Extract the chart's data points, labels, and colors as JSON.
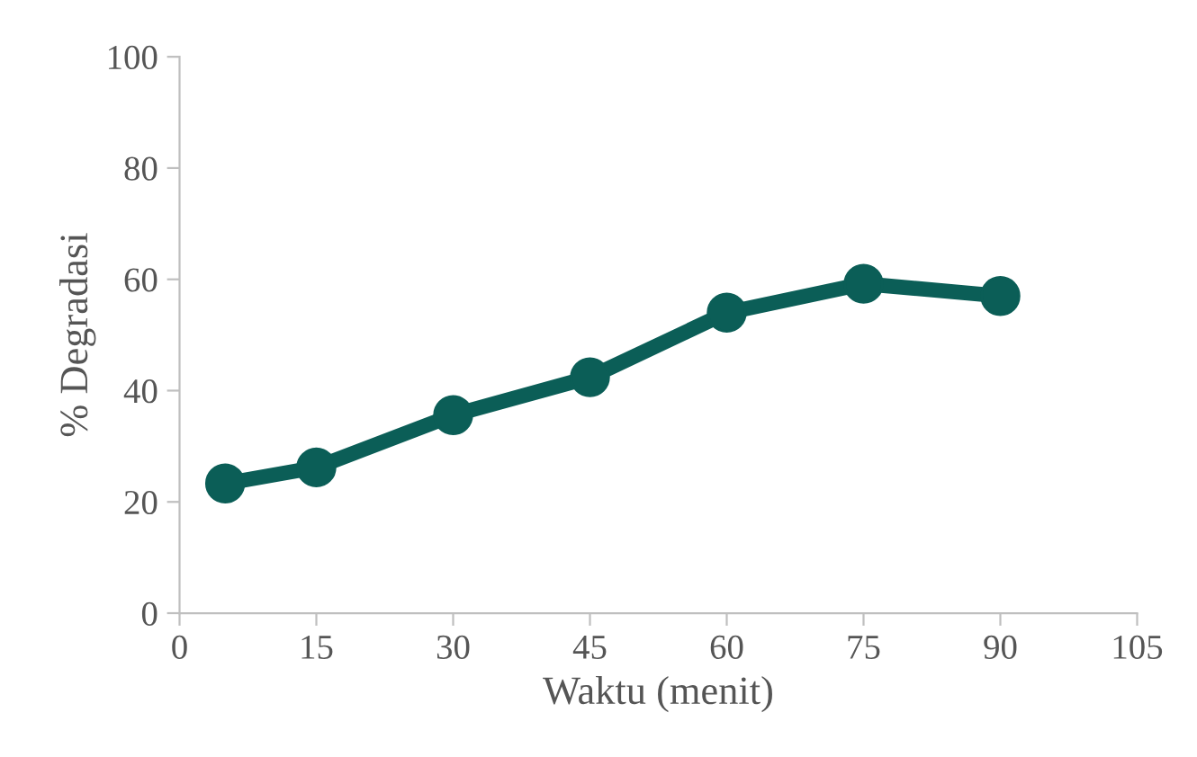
{
  "chart_data": {
    "type": "line",
    "xlabel": "Waktu (menit)",
    "ylabel": "% Degradasi",
    "x": [
      5,
      15,
      30,
      45,
      60,
      75,
      90
    ],
    "series": [
      {
        "color": "#0b5e57",
        "values": [
          23.3,
          26.2,
          35.6,
          42.4,
          54.0,
          59.2,
          57.0
        ]
      }
    ],
    "xlim": [
      0,
      105
    ],
    "xticks": [
      0,
      15,
      30,
      45,
      60,
      75,
      90,
      105
    ],
    "ylim": [
      0,
      100
    ],
    "yticks": [
      0,
      20,
      40,
      60,
      80,
      100
    ],
    "grid": false,
    "marker": "circle",
    "line_style": "solid"
  }
}
